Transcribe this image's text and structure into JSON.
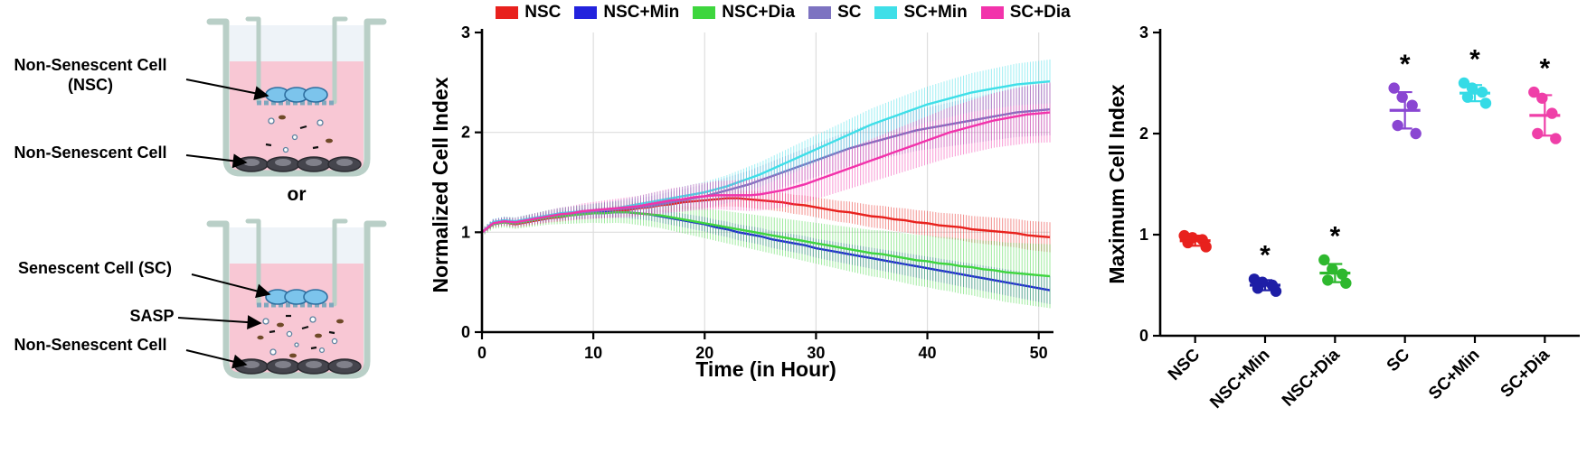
{
  "palette": {
    "nsc": "#e8211d",
    "nsc_min": "#2222dd",
    "nsc_dia": "#3ed63e",
    "sc": "#7d73c1",
    "sc_min": "#3fdfe8",
    "sc_dia": "#f233ab"
  },
  "diagram": {
    "well1": {
      "insert_cell_label_line1": "Non-Senescent Cell",
      "insert_cell_label_line2": "(NSC)",
      "bottom_cell_label": "Non-Senescent Cell"
    },
    "or_label": "or",
    "well2": {
      "insert_cell_label": "Senescent Cell (SC)",
      "sasp_label": "SASP",
      "bottom_cell_label": "Non-Senescent Cell"
    }
  },
  "legend": {
    "items": [
      {
        "label": "NSC",
        "color": "#e8211d"
      },
      {
        "label": "NSC+Min",
        "color": "#2222dd"
      },
      {
        "label": "NSC+Dia",
        "color": "#3ed63e"
      },
      {
        "label": "SC",
        "color": "#7d73c1"
      },
      {
        "label": "SC+Min",
        "color": "#3fdfe8"
      },
      {
        "label": "SC+Dia",
        "color": "#f233ab"
      }
    ]
  },
  "chart_data": [
    {
      "type": "line",
      "title": "",
      "ylabel": "Normalized Cell Index",
      "xlabel": "Time (in Hour)",
      "xlim": [
        0,
        51
      ],
      "ylim": [
        0,
        3
      ],
      "xticks": [
        0,
        10,
        20,
        30,
        40,
        50
      ],
      "yticks": [
        0,
        1,
        2,
        3
      ],
      "x_step": 1,
      "grid": true,
      "error_bars": "sd-whiskers-every-point",
      "series": [
        {
          "name": "NSC",
          "color": "#e8211d",
          "err_start": 0.03,
          "err_end": 0.15,
          "values": [
            1.0,
            1.08,
            1.1,
            1.08,
            1.1,
            1.12,
            1.14,
            1.15,
            1.17,
            1.18,
            1.19,
            1.2,
            1.21,
            1.22,
            1.24,
            1.25,
            1.27,
            1.28,
            1.3,
            1.31,
            1.32,
            1.33,
            1.34,
            1.34,
            1.33,
            1.32,
            1.31,
            1.3,
            1.28,
            1.27,
            1.25,
            1.23,
            1.21,
            1.2,
            1.18,
            1.16,
            1.15,
            1.13,
            1.12,
            1.1,
            1.09,
            1.07,
            1.06,
            1.05,
            1.03,
            1.02,
            1.01,
            1.0,
            0.99,
            0.97,
            0.96,
            0.95
          ]
        },
        {
          "name": "NSC+Min",
          "color": "#2222dd",
          "err_start": 0.03,
          "err_end": 0.14,
          "values": [
            1.0,
            1.1,
            1.12,
            1.1,
            1.12,
            1.14,
            1.16,
            1.17,
            1.18,
            1.19,
            1.19,
            1.2,
            1.2,
            1.2,
            1.19,
            1.18,
            1.16,
            1.14,
            1.12,
            1.1,
            1.08,
            1.05,
            1.03,
            1.0,
            0.98,
            0.96,
            0.93,
            0.91,
            0.89,
            0.87,
            0.84,
            0.82,
            0.8,
            0.78,
            0.76,
            0.74,
            0.72,
            0.7,
            0.68,
            0.66,
            0.64,
            0.62,
            0.6,
            0.58,
            0.56,
            0.54,
            0.52,
            0.5,
            0.48,
            0.46,
            0.44,
            0.42
          ]
        },
        {
          "name": "NSC+Dia",
          "color": "#3ed63e",
          "err_start": 0.04,
          "err_end": 0.32,
          "values": [
            1.0,
            1.08,
            1.1,
            1.09,
            1.11,
            1.13,
            1.15,
            1.16,
            1.17,
            1.18,
            1.19,
            1.19,
            1.2,
            1.2,
            1.19,
            1.18,
            1.17,
            1.15,
            1.13,
            1.11,
            1.09,
            1.07,
            1.05,
            1.03,
            1.01,
            0.99,
            0.97,
            0.95,
            0.93,
            0.91,
            0.89,
            0.87,
            0.85,
            0.83,
            0.81,
            0.79,
            0.78,
            0.76,
            0.74,
            0.72,
            0.71,
            0.69,
            0.68,
            0.66,
            0.65,
            0.63,
            0.62,
            0.6,
            0.59,
            0.58,
            0.57,
            0.56
          ]
        },
        {
          "name": "SC",
          "color": "#7d73c1",
          "err_start": 0.03,
          "err_end": 0.26,
          "values": [
            1.0,
            1.09,
            1.11,
            1.1,
            1.12,
            1.14,
            1.16,
            1.18,
            1.19,
            1.2,
            1.21,
            1.22,
            1.23,
            1.24,
            1.25,
            1.26,
            1.28,
            1.3,
            1.32,
            1.34,
            1.36,
            1.39,
            1.42,
            1.45,
            1.48,
            1.52,
            1.56,
            1.6,
            1.64,
            1.68,
            1.72,
            1.76,
            1.8,
            1.84,
            1.87,
            1.9,
            1.93,
            1.96,
            1.99,
            2.02,
            2.04,
            2.06,
            2.08,
            2.1,
            2.12,
            2.14,
            2.16,
            2.18,
            2.2,
            2.21,
            2.22,
            2.23
          ]
        },
        {
          "name": "SC+Min",
          "color": "#3fdfe8",
          "err_start": 0.03,
          "err_end": 0.22,
          "values": [
            1.0,
            1.1,
            1.12,
            1.11,
            1.13,
            1.15,
            1.17,
            1.19,
            1.2,
            1.21,
            1.22,
            1.23,
            1.24,
            1.26,
            1.28,
            1.3,
            1.32,
            1.34,
            1.36,
            1.38,
            1.4,
            1.43,
            1.46,
            1.5,
            1.54,
            1.58,
            1.63,
            1.68,
            1.73,
            1.78,
            1.83,
            1.88,
            1.93,
            1.98,
            2.03,
            2.08,
            2.12,
            2.16,
            2.2,
            2.24,
            2.28,
            2.31,
            2.34,
            2.37,
            2.4,
            2.42,
            2.44,
            2.46,
            2.48,
            2.49,
            2.5,
            2.51
          ]
        },
        {
          "name": "SC+Dia",
          "color": "#f233ab",
          "err_start": 0.03,
          "err_end": 0.3,
          "values": [
            1.0,
            1.09,
            1.11,
            1.1,
            1.12,
            1.14,
            1.16,
            1.18,
            1.19,
            1.21,
            1.22,
            1.23,
            1.24,
            1.25,
            1.26,
            1.28,
            1.3,
            1.32,
            1.33,
            1.35,
            1.36,
            1.37,
            1.37,
            1.37,
            1.37,
            1.38,
            1.4,
            1.42,
            1.45,
            1.48,
            1.52,
            1.56,
            1.6,
            1.64,
            1.68,
            1.72,
            1.76,
            1.8,
            1.84,
            1.88,
            1.92,
            1.96,
            2.0,
            2.03,
            2.06,
            2.09,
            2.12,
            2.14,
            2.16,
            2.18,
            2.19,
            2.2
          ]
        }
      ]
    },
    {
      "type": "scatter",
      "title": "",
      "ylabel": "Maximum Cell Index",
      "ylim": [
        0,
        3
      ],
      "yticks": [
        0,
        1,
        2,
        3
      ],
      "significance_marker": "*",
      "groups": [
        {
          "label": "NSC",
          "color": "#e8211d",
          "points": [
            0.99,
            0.97,
            0.95,
            0.92,
            0.88
          ],
          "mean": 0.94,
          "sd": 0.05,
          "significant": false
        },
        {
          "label": "NSC+Min",
          "color": "#1e1ea6",
          "points": [
            0.56,
            0.53,
            0.5,
            0.47,
            0.44
          ],
          "mean": 0.5,
          "sd": 0.05,
          "significant": true
        },
        {
          "label": "NSC+Dia",
          "color": "#2eb82e",
          "points": [
            0.75,
            0.66,
            0.61,
            0.55,
            0.52
          ],
          "mean": 0.62,
          "sd": 0.09,
          "significant": true
        },
        {
          "label": "SC",
          "color": "#8a46d2",
          "points": [
            2.45,
            2.36,
            2.28,
            2.08,
            2.0
          ],
          "mean": 2.23,
          "sd": 0.18,
          "significant": true
        },
        {
          "label": "SC+Min",
          "color": "#35dbe6",
          "points": [
            2.5,
            2.45,
            2.41,
            2.36,
            2.3
          ],
          "mean": 2.4,
          "sd": 0.08,
          "significant": true
        },
        {
          "label": "SC+Dia",
          "color": "#ef3fa8",
          "points": [
            2.41,
            2.35,
            2.2,
            2.0,
            1.95
          ],
          "mean": 2.18,
          "sd": 0.2,
          "significant": true
        }
      ]
    }
  ]
}
